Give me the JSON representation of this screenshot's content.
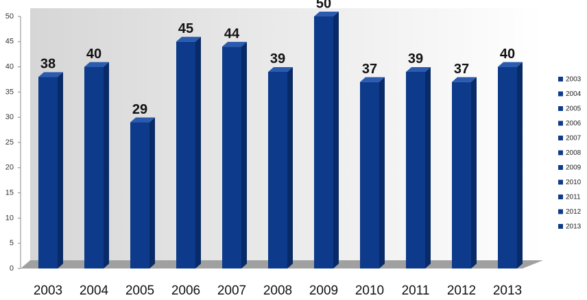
{
  "chart_data": {
    "type": "bar",
    "categories": [
      "2003",
      "2004",
      "2005",
      "2006",
      "2007",
      "2008",
      "2009",
      "2010",
      "2011",
      "2012",
      "2013"
    ],
    "values": [
      38,
      40,
      29,
      45,
      44,
      39,
      50,
      37,
      39,
      37,
      40
    ],
    "color": "#0d3a8a",
    "ylim": [
      0,
      50
    ],
    "yticks": [
      0,
      5,
      10,
      15,
      20,
      25,
      30,
      35,
      40,
      45,
      50
    ],
    "legend": "right"
  }
}
